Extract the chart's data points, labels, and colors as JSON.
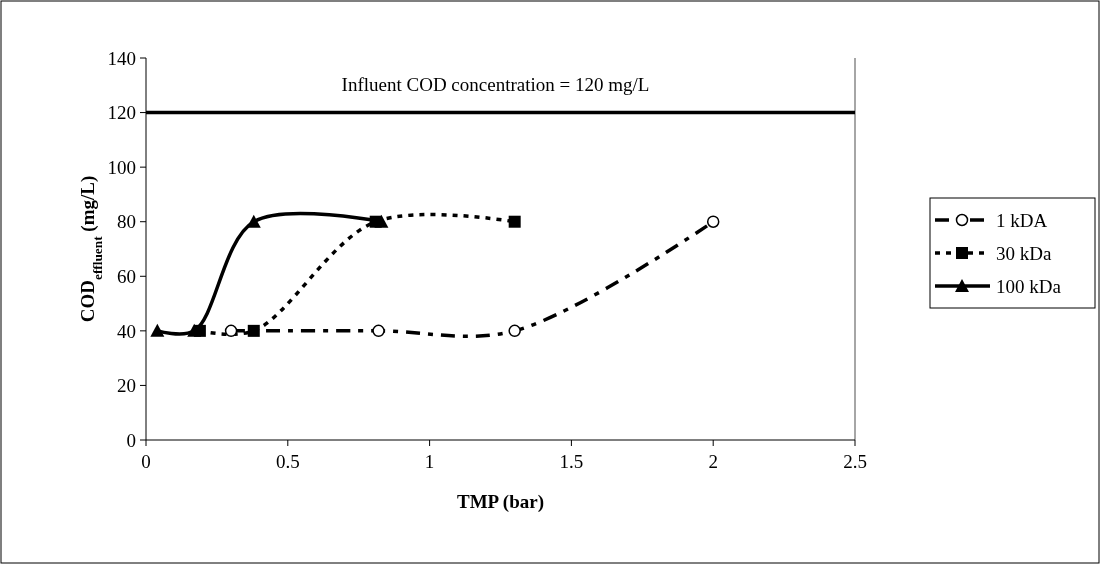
{
  "chart_data": {
    "type": "line",
    "xlabel": "TMP (bar)",
    "ylabel": "COD$_{effluent}$ (mg/L)",
    "xlim": [
      0,
      2.5
    ],
    "xticks": [
      0,
      0.5,
      1,
      1.5,
      2,
      2.5
    ],
    "ylim": [
      0,
      140
    ],
    "yticks": [
      0,
      20,
      40,
      60,
      80,
      100,
      120,
      140
    ],
    "grid": false,
    "legend": "right",
    "ref_lines": [
      {
        "axis": "y",
        "value": 120,
        "label": "Influent COD concentration = 120 mg/L",
        "color": "#000000",
        "line_style": "solid"
      }
    ],
    "series": [
      {
        "name": "1 kDA",
        "color": "#000000",
        "marker": "circle",
        "line_style": "dashed",
        "x": [
          0.3,
          0.82,
          1.3,
          2.0
        ],
        "values": [
          40,
          40,
          40,
          80
        ]
      },
      {
        "name": "30 kDa",
        "color": "#000000",
        "marker": "square",
        "line_style": "dotted",
        "x": [
          0.19,
          0.38,
          0.81,
          1.3
        ],
        "values": [
          40,
          40,
          80,
          80
        ]
      },
      {
        "name": "100 kDa",
        "color": "#000000",
        "marker": "triangle",
        "line_style": "solid",
        "x": [
          0.04,
          0.17,
          0.38,
          0.83
        ],
        "values": [
          40,
          40,
          80,
          80
        ]
      }
    ]
  }
}
